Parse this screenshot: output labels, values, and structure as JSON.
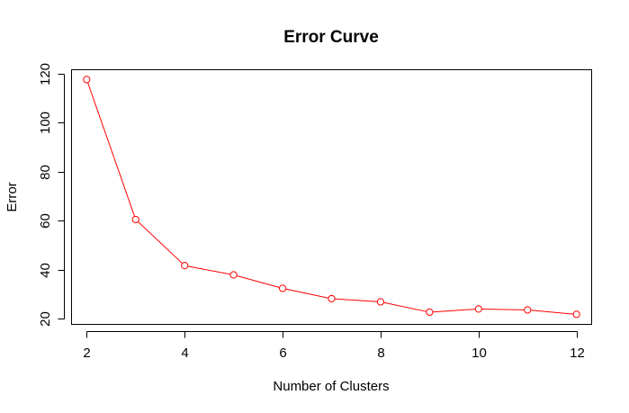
{
  "chart_data": {
    "type": "line",
    "title": "Error Curve",
    "xlabel": "Number of Clusters",
    "ylabel": "Error",
    "xlim": [
      1.7,
      12.3
    ],
    "ylim": [
      17.9,
      121.4
    ],
    "x_ticks": [
      2,
      4,
      6,
      8,
      10,
      12
    ],
    "y_ticks": [
      20,
      40,
      60,
      80,
      100,
      120
    ],
    "grid": false,
    "legend": "none",
    "marker": "open-circle",
    "series": [
      {
        "color": "#ff0000",
        "x": [
          2,
          3,
          4,
          5,
          6,
          7,
          8,
          9,
          10,
          11,
          12
        ],
        "values": [
          117.6,
          60.5,
          41.7,
          37.9,
          32.4,
          28.2,
          26.9,
          22.7,
          24.0,
          23.6,
          21.8
        ]
      }
    ]
  }
}
